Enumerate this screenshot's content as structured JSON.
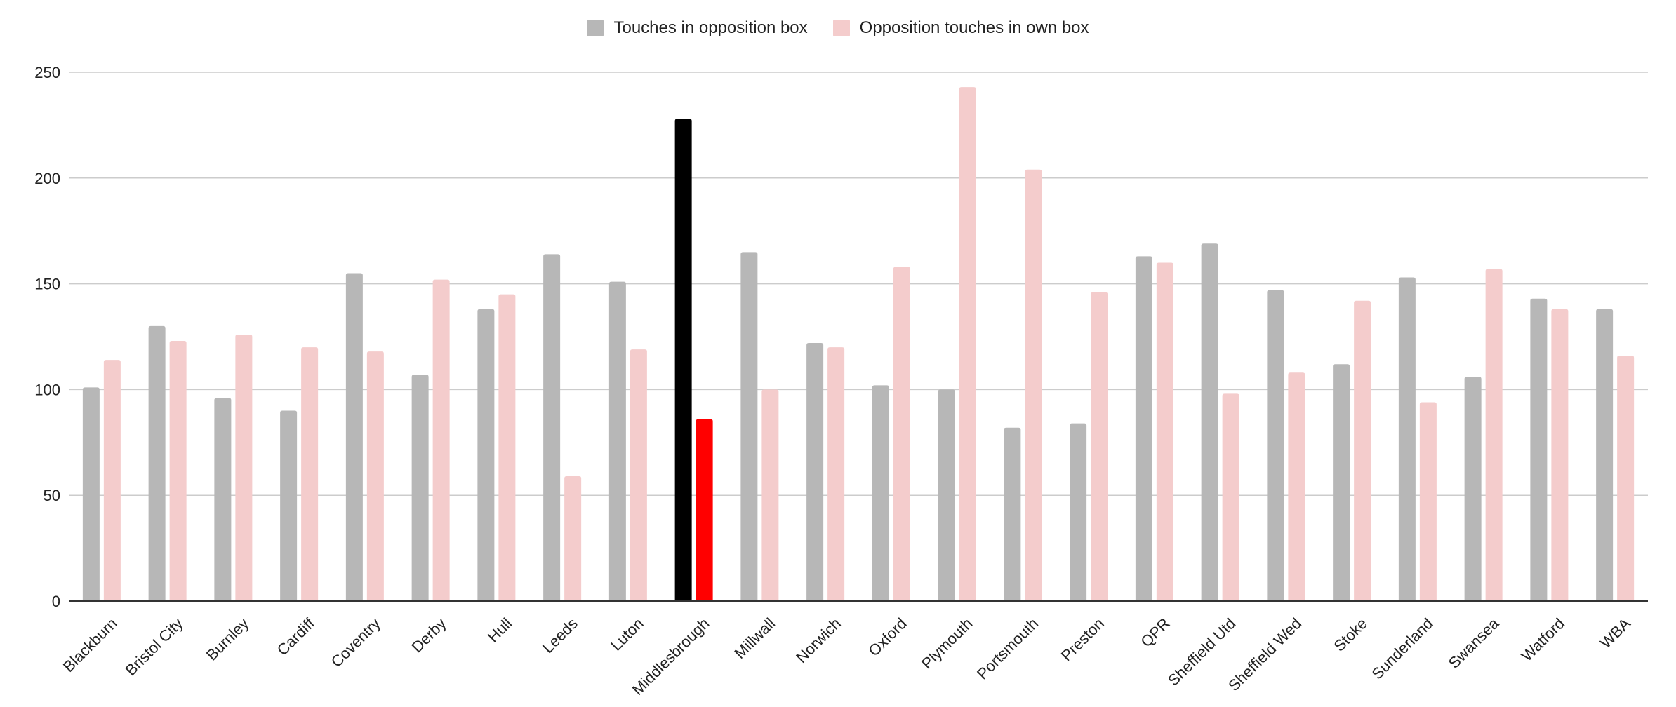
{
  "chart_data": {
    "type": "bar",
    "categories": [
      "Blackburn",
      "Bristol City",
      "Burnley",
      "Cardiff",
      "Coventry",
      "Derby",
      "Hull",
      "Leeds",
      "Luton",
      "Middlesbrough",
      "Millwall",
      "Norwich",
      "Oxford",
      "Plymouth",
      "Portsmouth",
      "Preston",
      "QPR",
      "Sheffield Utd",
      "Sheffield Wed",
      "Stoke",
      "Sunderland",
      "Swansea",
      "Watford",
      "WBA"
    ],
    "series": [
      {
        "name": "Touches in opposition box",
        "color": "#b7b7b7",
        "highlight_color": "#000000",
        "values": [
          101,
          130,
          96,
          90,
          155,
          107,
          138,
          164,
          151,
          228,
          165,
          122,
          102,
          100,
          82,
          84,
          163,
          169,
          147,
          112,
          153,
          106,
          143,
          138
        ]
      },
      {
        "name": "Opposition touches in own box",
        "color": "#f4cccc",
        "highlight_color": "#ff0000",
        "values": [
          114,
          123,
          126,
          120,
          118,
          152,
          145,
          59,
          119,
          86,
          100,
          120,
          158,
          243,
          204,
          146,
          160,
          98,
          108,
          142,
          94,
          157,
          138,
          116
        ]
      }
    ],
    "highlight_category": "Middlesbrough",
    "ylim": [
      0,
      250
    ],
    "yticks": [
      0,
      50,
      100,
      150,
      200,
      250
    ],
    "grid": true,
    "legend_position": "top-center",
    "xlabel": "",
    "ylabel": ""
  }
}
